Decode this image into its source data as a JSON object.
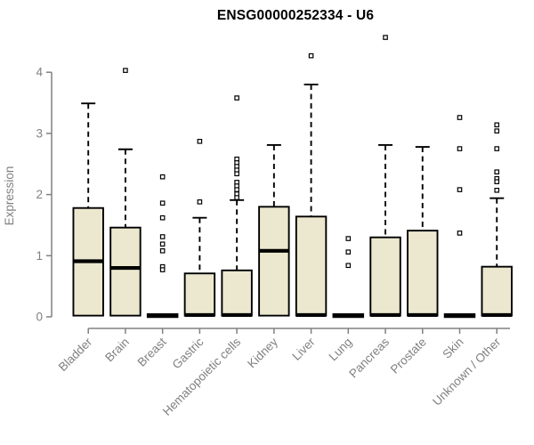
{
  "chart_data": {
    "type": "boxplot",
    "title": "ENSG00000252334 - U6",
    "ylabel": "Expression",
    "xlabel": "",
    "ylim": [
      0,
      4.65
    ],
    "yticks": [
      0,
      1,
      2,
      3,
      4
    ],
    "grid": false,
    "legend": null,
    "categories": [
      "Bladder",
      "Brain",
      "Breast",
      "Gastric",
      "Hematopoietic cells",
      "Kidney",
      "Liver",
      "Lung",
      "Pancreas",
      "Prostate",
      "Skin",
      "Unknown / Other"
    ],
    "boxes": [
      {
        "category": "Bladder",
        "low": 0.02,
        "q1": 0.02,
        "median": 0.91,
        "q3": 1.78,
        "high": 3.49,
        "outliers": [],
        "collapsed": false
      },
      {
        "category": "Brain",
        "low": 0.02,
        "q1": 0.02,
        "median": 0.8,
        "q3": 1.46,
        "high": 2.74,
        "outliers": [
          4.03
        ],
        "collapsed": false
      },
      {
        "category": "Breast",
        "low": 0.0,
        "q1": 0.0,
        "median": 0.02,
        "q3": 0.04,
        "high": 0.04,
        "outliers": [
          2.29,
          1.86,
          1.62,
          1.31,
          1.19,
          1.08,
          0.82,
          0.77
        ],
        "collapsed": true
      },
      {
        "category": "Gastric",
        "low": 0.02,
        "q1": 0.02,
        "median": 0.03,
        "q3": 0.71,
        "high": 1.62,
        "outliers": [
          2.87,
          1.88
        ],
        "collapsed": false
      },
      {
        "category": "Hematopoietic cells",
        "low": 0.02,
        "q1": 0.02,
        "median": 0.03,
        "q3": 0.76,
        "high": 1.91,
        "outliers": [
          3.58,
          2.58,
          2.52,
          2.46,
          2.4,
          2.34,
          2.2,
          2.14,
          2.08,
          2.01,
          1.95
        ],
        "collapsed": false
      },
      {
        "category": "Kidney",
        "low": 0.02,
        "q1": 0.02,
        "median": 1.08,
        "q3": 1.8,
        "high": 2.81,
        "outliers": [],
        "collapsed": false
      },
      {
        "category": "Liver",
        "low": 0.02,
        "q1": 0.02,
        "median": 0.03,
        "q3": 1.64,
        "high": 3.8,
        "outliers": [
          4.27
        ],
        "collapsed": false
      },
      {
        "category": "Lung",
        "low": 0.0,
        "q1": 0.0,
        "median": 0.02,
        "q3": 0.04,
        "high": 0.04,
        "outliers": [
          1.28,
          1.06,
          0.84
        ],
        "collapsed": true
      },
      {
        "category": "Pancreas",
        "low": 0.02,
        "q1": 0.02,
        "median": 0.03,
        "q3": 1.3,
        "high": 2.81,
        "outliers": [
          4.57
        ],
        "collapsed": false
      },
      {
        "category": "Prostate",
        "low": 0.02,
        "q1": 0.02,
        "median": 0.03,
        "q3": 1.41,
        "high": 2.78,
        "outliers": [],
        "collapsed": false
      },
      {
        "category": "Skin",
        "low": 0.0,
        "q1": 0.0,
        "median": 0.02,
        "q3": 0.04,
        "high": 0.04,
        "outliers": [
          3.26,
          2.75,
          2.08,
          1.37
        ],
        "collapsed": true
      },
      {
        "category": "Unknown / Other",
        "low": 0.02,
        "q1": 0.02,
        "median": 0.03,
        "q3": 0.82,
        "high": 1.94,
        "outliers": [
          3.14,
          3.04,
          2.75,
          2.37,
          2.26,
          2.21,
          2.07
        ],
        "collapsed": false
      }
    ],
    "colors": {
      "box_fill": "#ece8cf",
      "box_stroke": "#000000",
      "median": "#000000",
      "whisker": "#000000",
      "outlier_fill": "#ffffff",
      "outlier_stroke": "#000000",
      "axis": "#808080",
      "tick_label": "#808080",
      "title": "#000000",
      "background": "#ffffff"
    }
  }
}
